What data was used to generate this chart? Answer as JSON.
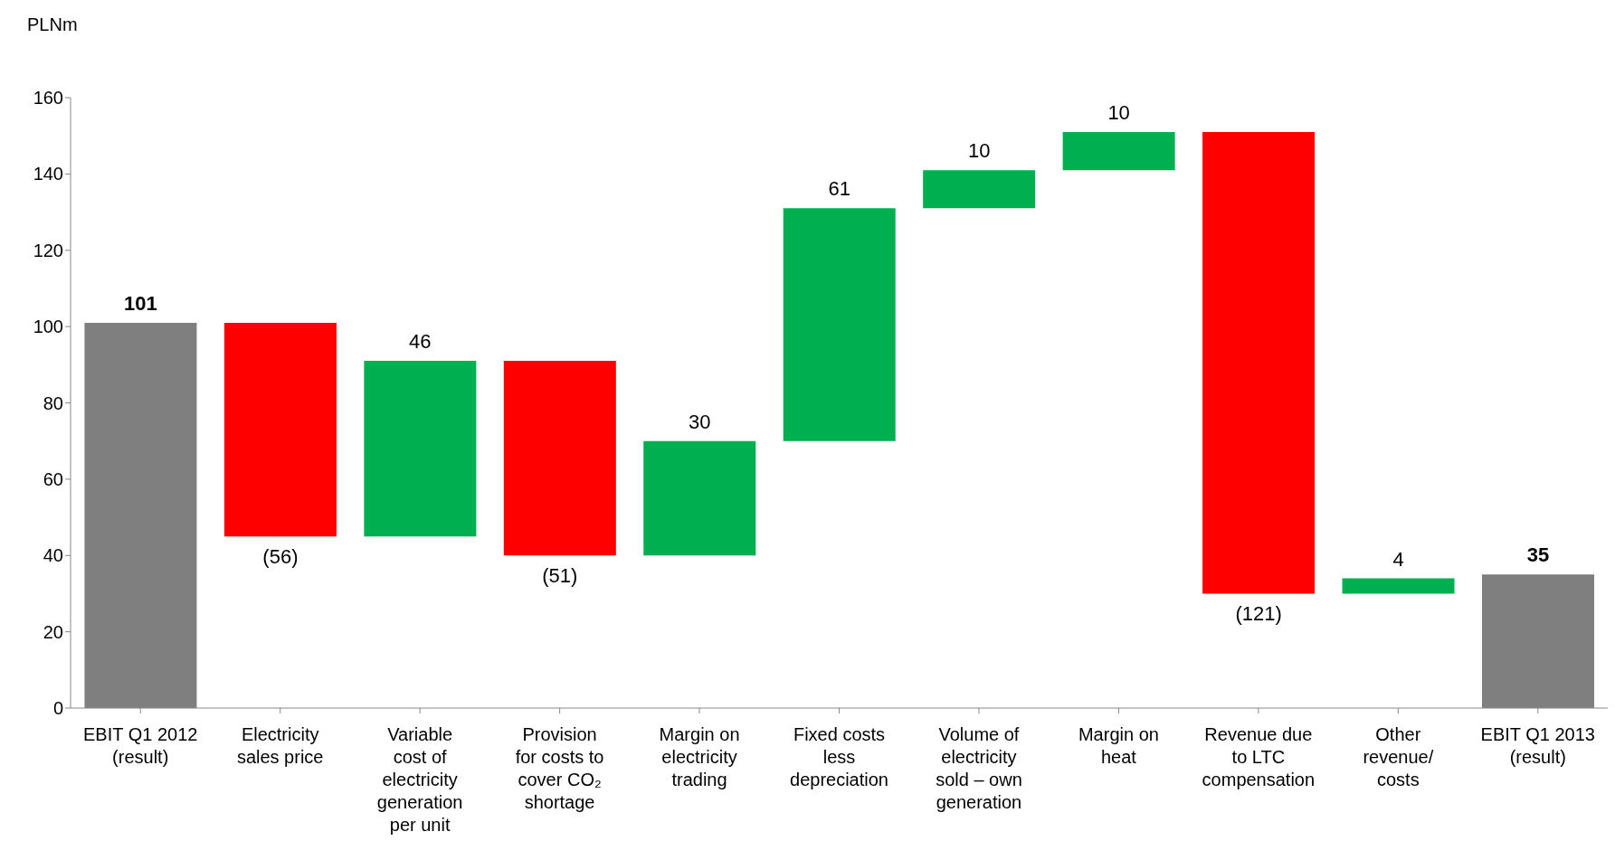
{
  "chart_data": {
    "type": "bar",
    "ylabel": "PLNm",
    "categories": [
      "EBIT Q1 2012 (result)",
      "Electricity sales price",
      "Variable cost of electricity generation per unit",
      "Provision for costs to cover CO₂ shortage",
      "Margin on electricity trading",
      "Fixed costs less depreciation",
      "Volume of electricity sold – own generation",
      "Margin on heat",
      "Revenue due to LTC compensation",
      "Other revenue/ costs",
      "EBIT Q1 2013 (result)"
    ],
    "values": [
      101,
      -56,
      46,
      -51,
      30,
      61,
      10,
      10,
      -121,
      4,
      35
    ],
    "base": [
      0,
      101,
      45,
      91,
      40,
      70,
      131,
      141,
      151,
      30,
      0
    ],
    "colors": [
      "#7f7f7f",
      "#ff0000",
      "#00b050",
      "#ff0000",
      "#00b050",
      "#00b050",
      "#00b050",
      "#00b050",
      "#ff0000",
      "#00b050",
      "#7f7f7f"
    ],
    "value_labels": [
      "101",
      "(56)",
      "46",
      "(51)",
      "30",
      "61",
      "10",
      "10",
      "(121)",
      "4",
      "35"
    ],
    "ylim": [
      0,
      160
    ],
    "yticks": [
      0,
      20,
      40,
      60,
      80,
      100,
      120,
      140,
      160
    ],
    "grid": false,
    "legend": false
  }
}
